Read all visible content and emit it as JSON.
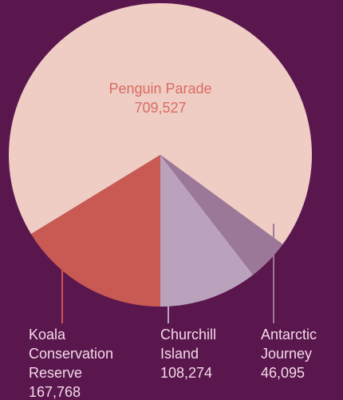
{
  "chart_data": {
    "type": "pie",
    "categories": [
      "Penguin Parade",
      "Koala Conservation Reserve",
      "Churchill Island",
      "Antarctic Journey"
    ],
    "values": [
      709527,
      167768,
      108274,
      46095
    ],
    "value_labels": [
      "709,527",
      "167,768",
      "108,274",
      "46,095"
    ],
    "colors": [
      "#efcdc5",
      "#c95953",
      "#baa2bd",
      "#9c7898"
    ]
  }
}
